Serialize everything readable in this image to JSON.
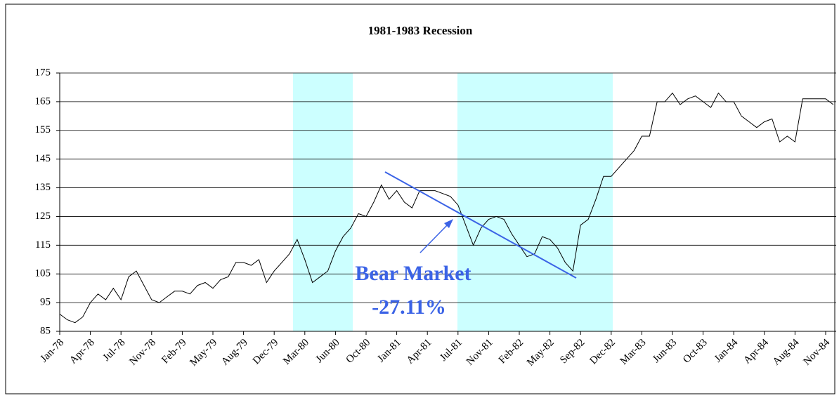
{
  "chart_data": {
    "type": "line",
    "title": "1981-1983 Recession",
    "annotations": [
      "Bear Market",
      "-27.11%"
    ],
    "color": "#000000",
    "categories": [
      "Jan-78",
      null,
      null,
      null,
      "Apr-78",
      null,
      null,
      null,
      "Jul-78",
      null,
      null,
      null,
      "Nov-78",
      null,
      null,
      null,
      "Feb-79",
      null,
      null,
      null,
      "May-79",
      null,
      null,
      null,
      "Aug-79",
      null,
      null,
      null,
      "Dec-79",
      null,
      null,
      null,
      "Mar-80",
      null,
      null,
      null,
      "Jun-80",
      null,
      null,
      null,
      "Oct-80",
      null,
      null,
      null,
      "Jan-81",
      null,
      null,
      null,
      "Apr-81",
      null,
      null,
      null,
      "Jul-81",
      null,
      null,
      null,
      "Nov-81",
      null,
      null,
      null,
      "Feb-82",
      null,
      null,
      null,
      "May-82",
      null,
      null,
      null,
      "Sep-82",
      null,
      null,
      null,
      "Dec-82",
      null,
      null,
      null,
      "Mar-83",
      null,
      null,
      null,
      "Jun-83",
      null,
      null,
      null,
      "Oct-83",
      null,
      null,
      null,
      "Jan-84",
      null,
      null,
      null,
      "Apr-84",
      null,
      null,
      null,
      "Aug-84",
      null,
      null,
      null,
      "Nov-84",
      null
    ],
    "values": [
      91,
      89,
      88,
      90,
      95,
      98,
      96,
      100,
      96,
      104,
      106,
      101,
      96,
      95,
      97,
      99,
      99,
      98,
      101,
      102,
      100,
      103,
      104,
      109,
      109,
      108,
      110,
      102,
      106,
      109,
      112,
      117,
      110,
      102,
      104,
      106,
      113,
      118,
      121,
      126,
      125,
      130,
      136,
      131,
      134,
      130,
      128,
      134,
      134,
      134,
      133,
      132,
      129,
      122,
      115,
      121,
      124,
      125,
      124,
      119,
      115,
      111,
      112,
      118,
      117,
      114,
      109,
      106,
      122,
      124,
      131,
      139,
      139,
      142,
      145,
      148,
      153,
      153,
      165,
      165,
      168,
      164,
      166,
      167,
      165,
      163,
      168,
      165,
      165,
      160,
      158,
      156,
      158,
      159,
      151,
      153,
      151,
      166,
      166,
      166,
      166,
      164
    ],
    "ylim": [
      85,
      175
    ],
    "yticks": [
      85,
      95,
      105,
      115,
      125,
      135,
      145,
      155,
      165,
      175
    ],
    "grid": true
  }
}
